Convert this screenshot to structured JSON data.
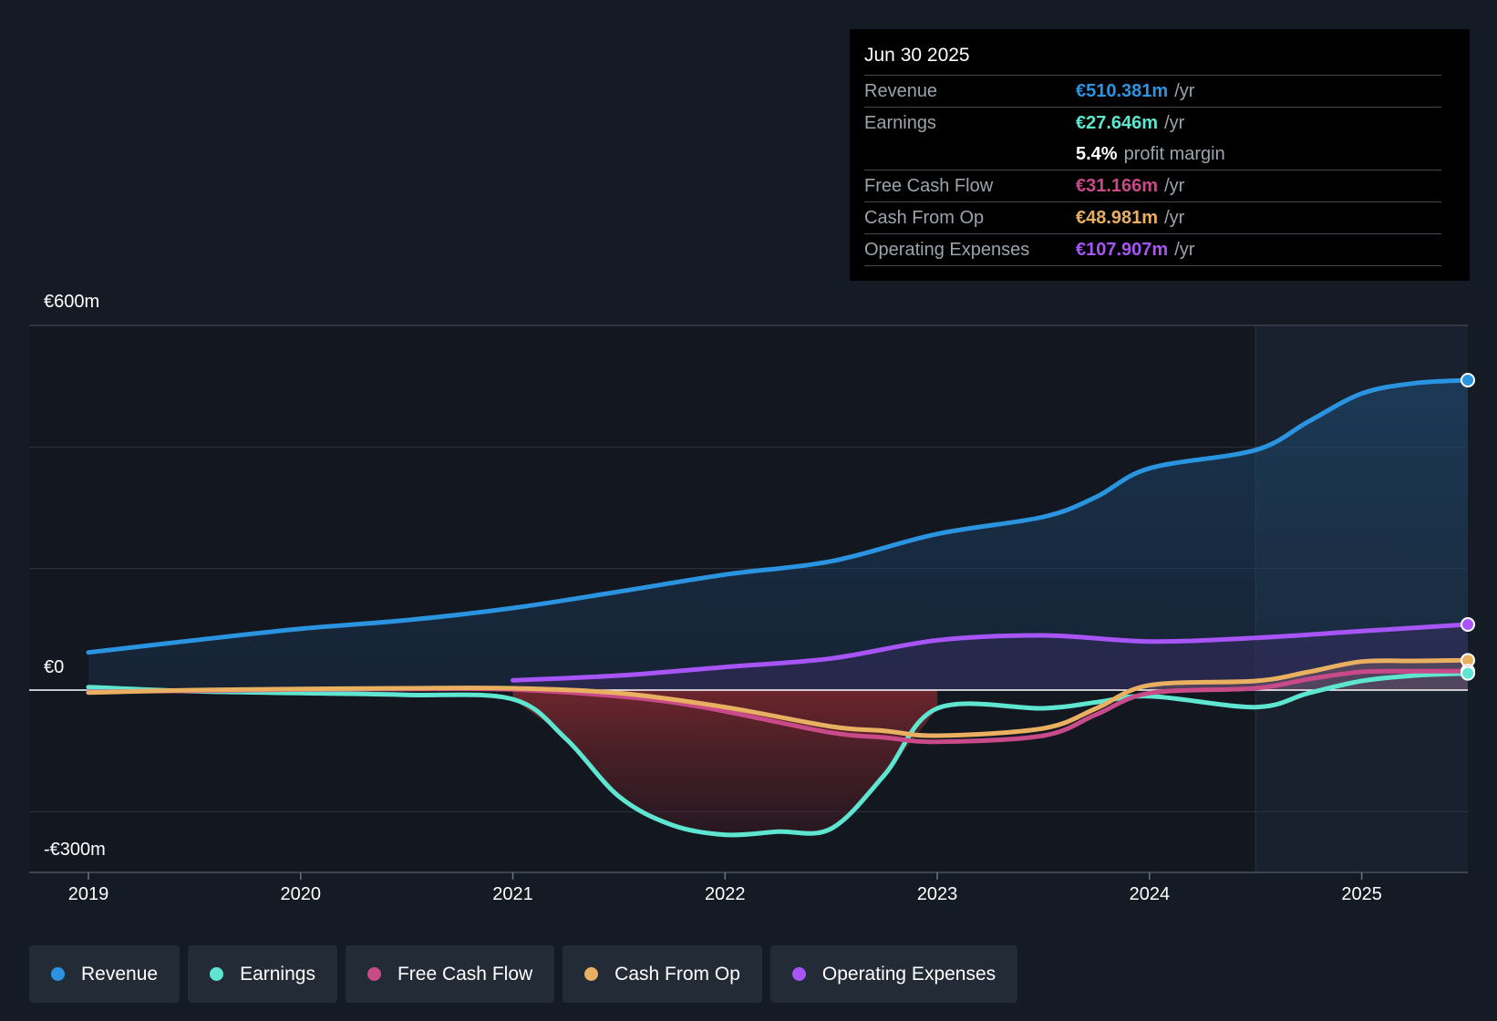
{
  "colors": {
    "revenue": "#2b94e0",
    "earnings": "#5ee6d0",
    "fcf": "#c84a88",
    "cfo": "#e8b060",
    "opex": "#a855f7"
  },
  "tooltip": {
    "date": "Jun 30 2025",
    "rows": [
      {
        "label": "Revenue",
        "value": "€510.381m",
        "unit": "/yr"
      },
      {
        "label": "Earnings",
        "value": "€27.646m",
        "unit": "/yr"
      },
      {
        "margin_value": "5.4%",
        "margin_label": "profit margin"
      },
      {
        "label": "Free Cash Flow",
        "value": "€31.166m",
        "unit": "/yr"
      },
      {
        "label": "Cash From Op",
        "value": "€48.981m",
        "unit": "/yr"
      },
      {
        "label": "Operating Expenses",
        "value": "€107.907m",
        "unit": "/yr"
      }
    ]
  },
  "legend": [
    {
      "label": "Revenue",
      "icon": "revenue-dot-icon"
    },
    {
      "label": "Earnings",
      "icon": "earnings-dot-icon"
    },
    {
      "label": "Free Cash Flow",
      "icon": "fcf-dot-icon"
    },
    {
      "label": "Cash From Op",
      "icon": "cfo-dot-icon"
    },
    {
      "label": "Operating Expenses",
      "icon": "opex-dot-icon"
    }
  ],
  "chart_data": {
    "type": "line",
    "title": "",
    "y_labels": {
      "top": "€600m",
      "zero": "€0",
      "bottom": "-€300m"
    },
    "ylim": [
      -300,
      600
    ],
    "xlim": [
      2019.0,
      2025.5
    ],
    "x_ticks": [
      "2019",
      "2020",
      "2021",
      "2022",
      "2023",
      "2024",
      "2025"
    ],
    "forecast_start": 2024.5,
    "series": [
      {
        "name": "Revenue",
        "points": [
          [
            2019.0,
            62
          ],
          [
            2019.5,
            82
          ],
          [
            2020.0,
            101
          ],
          [
            2020.5,
            115
          ],
          [
            2021.0,
            135
          ],
          [
            2021.5,
            162
          ],
          [
            2022.0,
            190
          ],
          [
            2022.5,
            212
          ],
          [
            2023.0,
            257
          ],
          [
            2023.5,
            285
          ],
          [
            2023.75,
            318
          ],
          [
            2024.0,
            365
          ],
          [
            2024.5,
            395
          ],
          [
            2024.75,
            442
          ],
          [
            2025.0,
            488
          ],
          [
            2025.25,
            505
          ],
          [
            2025.5,
            510
          ]
        ]
      },
      {
        "name": "Earnings",
        "points": [
          [
            2019.0,
            5
          ],
          [
            2019.5,
            -2
          ],
          [
            2020.0,
            -5
          ],
          [
            2020.5,
            -8
          ],
          [
            2021.0,
            -15
          ],
          [
            2021.25,
            -80
          ],
          [
            2021.5,
            -175
          ],
          [
            2021.75,
            -222
          ],
          [
            2022.0,
            -238
          ],
          [
            2022.25,
            -233
          ],
          [
            2022.5,
            -228
          ],
          [
            2022.75,
            -140
          ],
          [
            2023.0,
            -30
          ],
          [
            2023.5,
            -30
          ],
          [
            2023.75,
            -20
          ],
          [
            2024.0,
            -10
          ],
          [
            2024.5,
            -28
          ],
          [
            2024.75,
            -5
          ],
          [
            2025.0,
            15
          ],
          [
            2025.25,
            24
          ],
          [
            2025.5,
            27.6
          ]
        ]
      },
      {
        "name": "Free Cash Flow",
        "points": [
          [
            2019.0,
            -3
          ],
          [
            2019.5,
            -1
          ],
          [
            2020.0,
            1
          ],
          [
            2020.5,
            2
          ],
          [
            2021.0,
            1
          ],
          [
            2021.5,
            -10
          ],
          [
            2021.75,
            -20
          ],
          [
            2022.0,
            -35
          ],
          [
            2022.5,
            -70
          ],
          [
            2022.75,
            -78
          ],
          [
            2023.0,
            -85
          ],
          [
            2023.5,
            -75
          ],
          [
            2023.75,
            -40
          ],
          [
            2024.0,
            -5
          ],
          [
            2024.5,
            3
          ],
          [
            2024.75,
            18
          ],
          [
            2025.0,
            30
          ],
          [
            2025.25,
            31
          ],
          [
            2025.5,
            31.2
          ]
        ]
      },
      {
        "name": "Cash From Op",
        "points": [
          [
            2019.0,
            -4
          ],
          [
            2019.5,
            0
          ],
          [
            2020.0,
            2
          ],
          [
            2020.5,
            3
          ],
          [
            2021.0,
            3
          ],
          [
            2021.5,
            -5
          ],
          [
            2022.0,
            -28
          ],
          [
            2022.5,
            -60
          ],
          [
            2022.75,
            -67
          ],
          [
            2023.0,
            -75
          ],
          [
            2023.5,
            -63
          ],
          [
            2023.75,
            -30
          ],
          [
            2024.0,
            8
          ],
          [
            2024.5,
            15
          ],
          [
            2024.75,
            30
          ],
          [
            2025.0,
            47
          ],
          [
            2025.25,
            48
          ],
          [
            2025.5,
            49
          ]
        ]
      },
      {
        "name": "Operating Expenses",
        "points": [
          [
            2021.0,
            16
          ],
          [
            2021.5,
            24
          ],
          [
            2022.0,
            38
          ],
          [
            2022.5,
            52
          ],
          [
            2023.0,
            82
          ],
          [
            2023.5,
            90
          ],
          [
            2024.0,
            80
          ],
          [
            2024.5,
            86
          ],
          [
            2025.0,
            97
          ],
          [
            2025.5,
            108
          ]
        ]
      }
    ]
  }
}
